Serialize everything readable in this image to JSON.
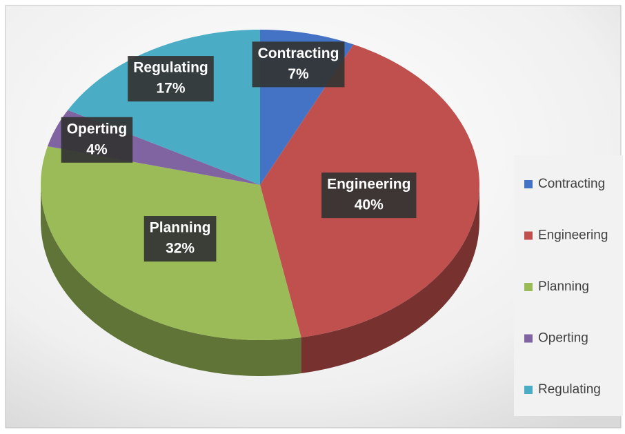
{
  "chart_data": {
    "type": "pie3d",
    "categories": [
      "Contracting",
      "Engineering",
      "Planning",
      "Operting",
      "Regulating"
    ],
    "values": [
      7,
      40,
      32,
      4,
      17
    ],
    "value_labels": [
      "7%",
      "40%",
      "32%",
      "4%",
      "17%"
    ],
    "colors": [
      "#4472c4",
      "#c0504d",
      "#9bbb59",
      "#8064a2",
      "#4bacc6"
    ],
    "legend": "right"
  }
}
